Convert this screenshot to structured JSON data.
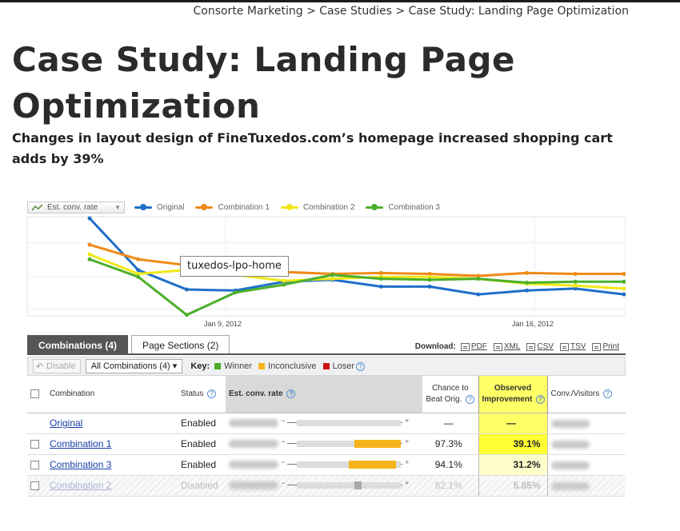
{
  "breadcrumb": {
    "items": [
      "Consorte Marketing",
      "Case Studies",
      "Case Study: Landing Page Optimization"
    ],
    "separator": ">"
  },
  "page": {
    "title": "Case Study: Landing Page Optimization",
    "subtitle": "Changes in layout design of FineTuxedos.com’s homepage increased shopping cart adds by 39%"
  },
  "report": {
    "metric_selector": "Est. conv. rate",
    "tooltip": "tuxedos-lpo-home",
    "tabs": [
      {
        "label": "Combinations (4)",
        "active": true
      },
      {
        "label": "Page Sections (2)",
        "active": false
      }
    ],
    "download": {
      "label": "Download:",
      "formats": [
        "PDF",
        "XML",
        "CSV",
        "TSV",
        "Print"
      ]
    },
    "toolbar": {
      "disable_label": "Disable",
      "filter_value": "All Combinations (4)",
      "key_label": "Key:",
      "key_items": [
        {
          "label": "Winner",
          "color": "#4caf2a"
        },
        {
          "label": "Inconclusive",
          "color": "#f4b51a"
        },
        {
          "label": "Loser",
          "color": "#cc1111"
        }
      ]
    },
    "table": {
      "headers": {
        "combination": "Combination",
        "status": "Status",
        "rate": "Est. conv. rate",
        "chance_1": "Chance to",
        "chance_2": "Beat Orig.",
        "improvement_1": "Observed",
        "improvement_2": "Improvement",
        "conv_visitors": "Conv./Visitors"
      },
      "rows": [
        {
          "name": "Original",
          "status": "Enabled",
          "chance": "—",
          "improvement": "—",
          "range": {
            "low": 0.0,
            "high": 0.0
          }
        },
        {
          "name": "Combination 1",
          "status": "Enabled",
          "chance": "97.3%",
          "improvement": "39.1%",
          "range": {
            "low": 0.55,
            "high": 1.0
          }
        },
        {
          "name": "Combination 3",
          "status": "Enabled",
          "chance": "94.1%",
          "improvement": "31.2%",
          "range": {
            "low": 0.5,
            "high": 0.95
          }
        },
        {
          "name": "Combination 2",
          "status": "Disabled",
          "chance": "62.1%",
          "improvement": "5.85%",
          "range": {
            "low": 0.55,
            "high": 0.62
          }
        }
      ]
    }
  },
  "chart_data": {
    "type": "line",
    "x_ticks": [
      "Jan 9, 2012",
      "Jan 16, 2012"
    ],
    "x_count": 12,
    "y_range": [
      0,
      100
    ],
    "series": [
      {
        "name": "Original",
        "color": "#1f6fc8",
        "values": [
          100,
          47,
          27,
          26,
          35,
          37,
          30,
          30,
          22,
          26,
          28,
          22
        ]
      },
      {
        "name": "Combination 1",
        "color": "#f08a17",
        "values": [
          73,
          58,
          52,
          52,
          45,
          43,
          44,
          43,
          41,
          44,
          43,
          43
        ]
      },
      {
        "name": "Combination 2",
        "color": "#f0e817",
        "values": [
          63,
          43,
          47,
          42,
          36,
          38,
          40,
          40,
          38,
          33,
          31,
          28
        ]
      },
      {
        "name": "Combination 3",
        "color": "#4caf2a",
        "values": [
          58,
          40,
          1,
          24,
          32,
          42,
          38,
          37,
          38,
          34,
          35,
          35
        ]
      }
    ]
  }
}
